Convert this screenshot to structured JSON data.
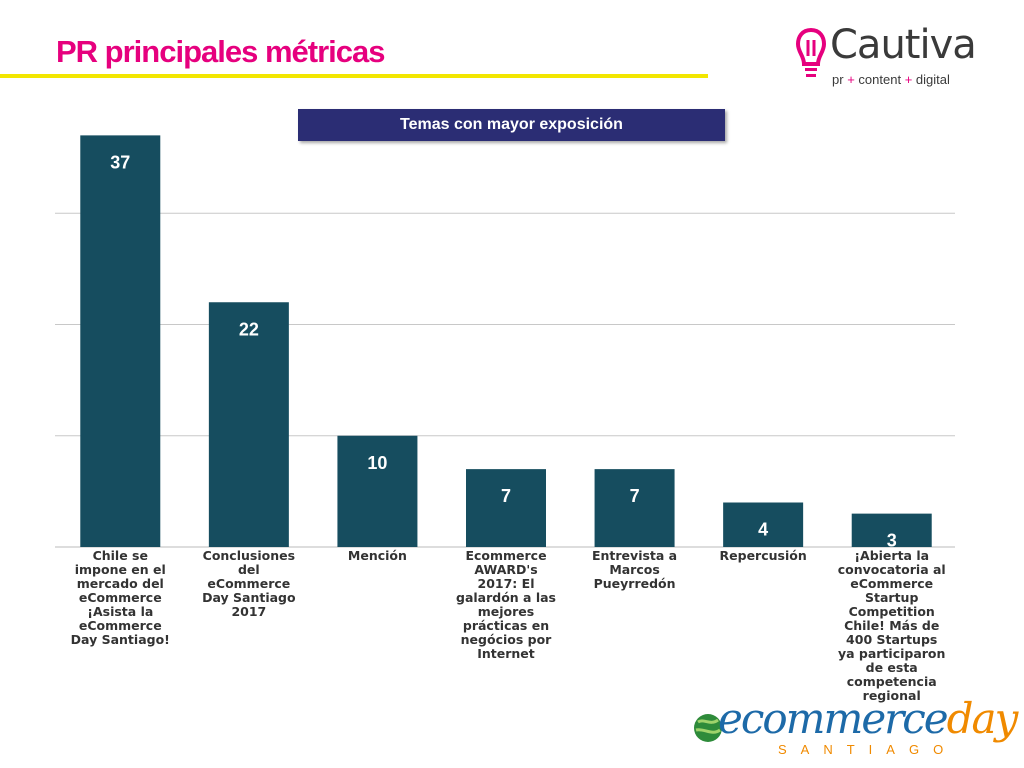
{
  "header": {
    "title": "PR principales métricas"
  },
  "logo": {
    "name": "Cautiva",
    "tagline": [
      "pr",
      "+",
      "content",
      "+",
      "digital"
    ]
  },
  "brand": {
    "word_main": "ecommerce",
    "word_accent": "day",
    "sub": "SANTIAGO"
  },
  "colors": {
    "bar": "#164d5f",
    "title": "#e6007e",
    "accent_rule": "#f2e600",
    "series_box": "#2b2d74",
    "grid": "#c8c8c8"
  },
  "chart_data": {
    "type": "bar",
    "series_label": "Temas con mayor exposición",
    "categories": [
      "Chile se impone en el mercado del eCommerce ¡Asista la eCommerce Day Santiago!",
      "Conclusiones del eCommerce Day Santiago 2017",
      "Mención",
      "Ecommerce AWARD's 2017: El galardón a las mejores prácticas en negócios por Internet",
      "Entrevista a Marcos Pueyrredón",
      "Repercusión",
      "¡Abierta la convocatoria al eCommerce Startup Competition Chile! Más de 400 Startups ya participaron de esta competencia regional"
    ],
    "category_lines": [
      [
        "Chile se",
        "impone en el",
        "mercado del",
        "eCommerce",
        "¡Asista la",
        "eCommerce",
        "Day Santiago!"
      ],
      [
        "Conclusiones",
        "del",
        "eCommerce",
        "Day Santiago",
        "2017"
      ],
      [
        "Mención"
      ],
      [
        "Ecommerce",
        "AWARD's",
        "2017: El",
        "galardón a las",
        "mejores",
        "prácticas en",
        "negócios por",
        "Internet"
      ],
      [
        "Entrevista a",
        "Marcos",
        "Pueyrredón"
      ],
      [
        "Repercusión"
      ],
      [
        "¡Abierta la",
        "convocatoria al",
        "eCommerce",
        "Startup",
        "Competition",
        "Chile! Más de",
        "400 Startups",
        "ya participaron",
        "de esta",
        "competencia",
        "regional"
      ]
    ],
    "values": [
      37,
      22,
      10,
      7,
      7,
      4,
      3
    ],
    "ylim": [
      0,
      40
    ],
    "grid": true,
    "data_labels": true
  }
}
